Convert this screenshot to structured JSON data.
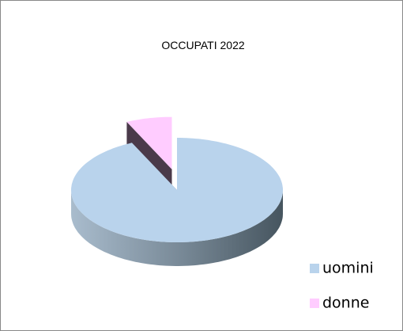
{
  "chart_data": {
    "type": "pie3d",
    "title": "OCCUPATI 2022",
    "categories": [
      "uomini",
      "donne"
    ],
    "values": [
      93,
      7
    ],
    "colors": [
      "#b9d3ec",
      "#ffccff"
    ],
    "legend": "bottom-right"
  }
}
